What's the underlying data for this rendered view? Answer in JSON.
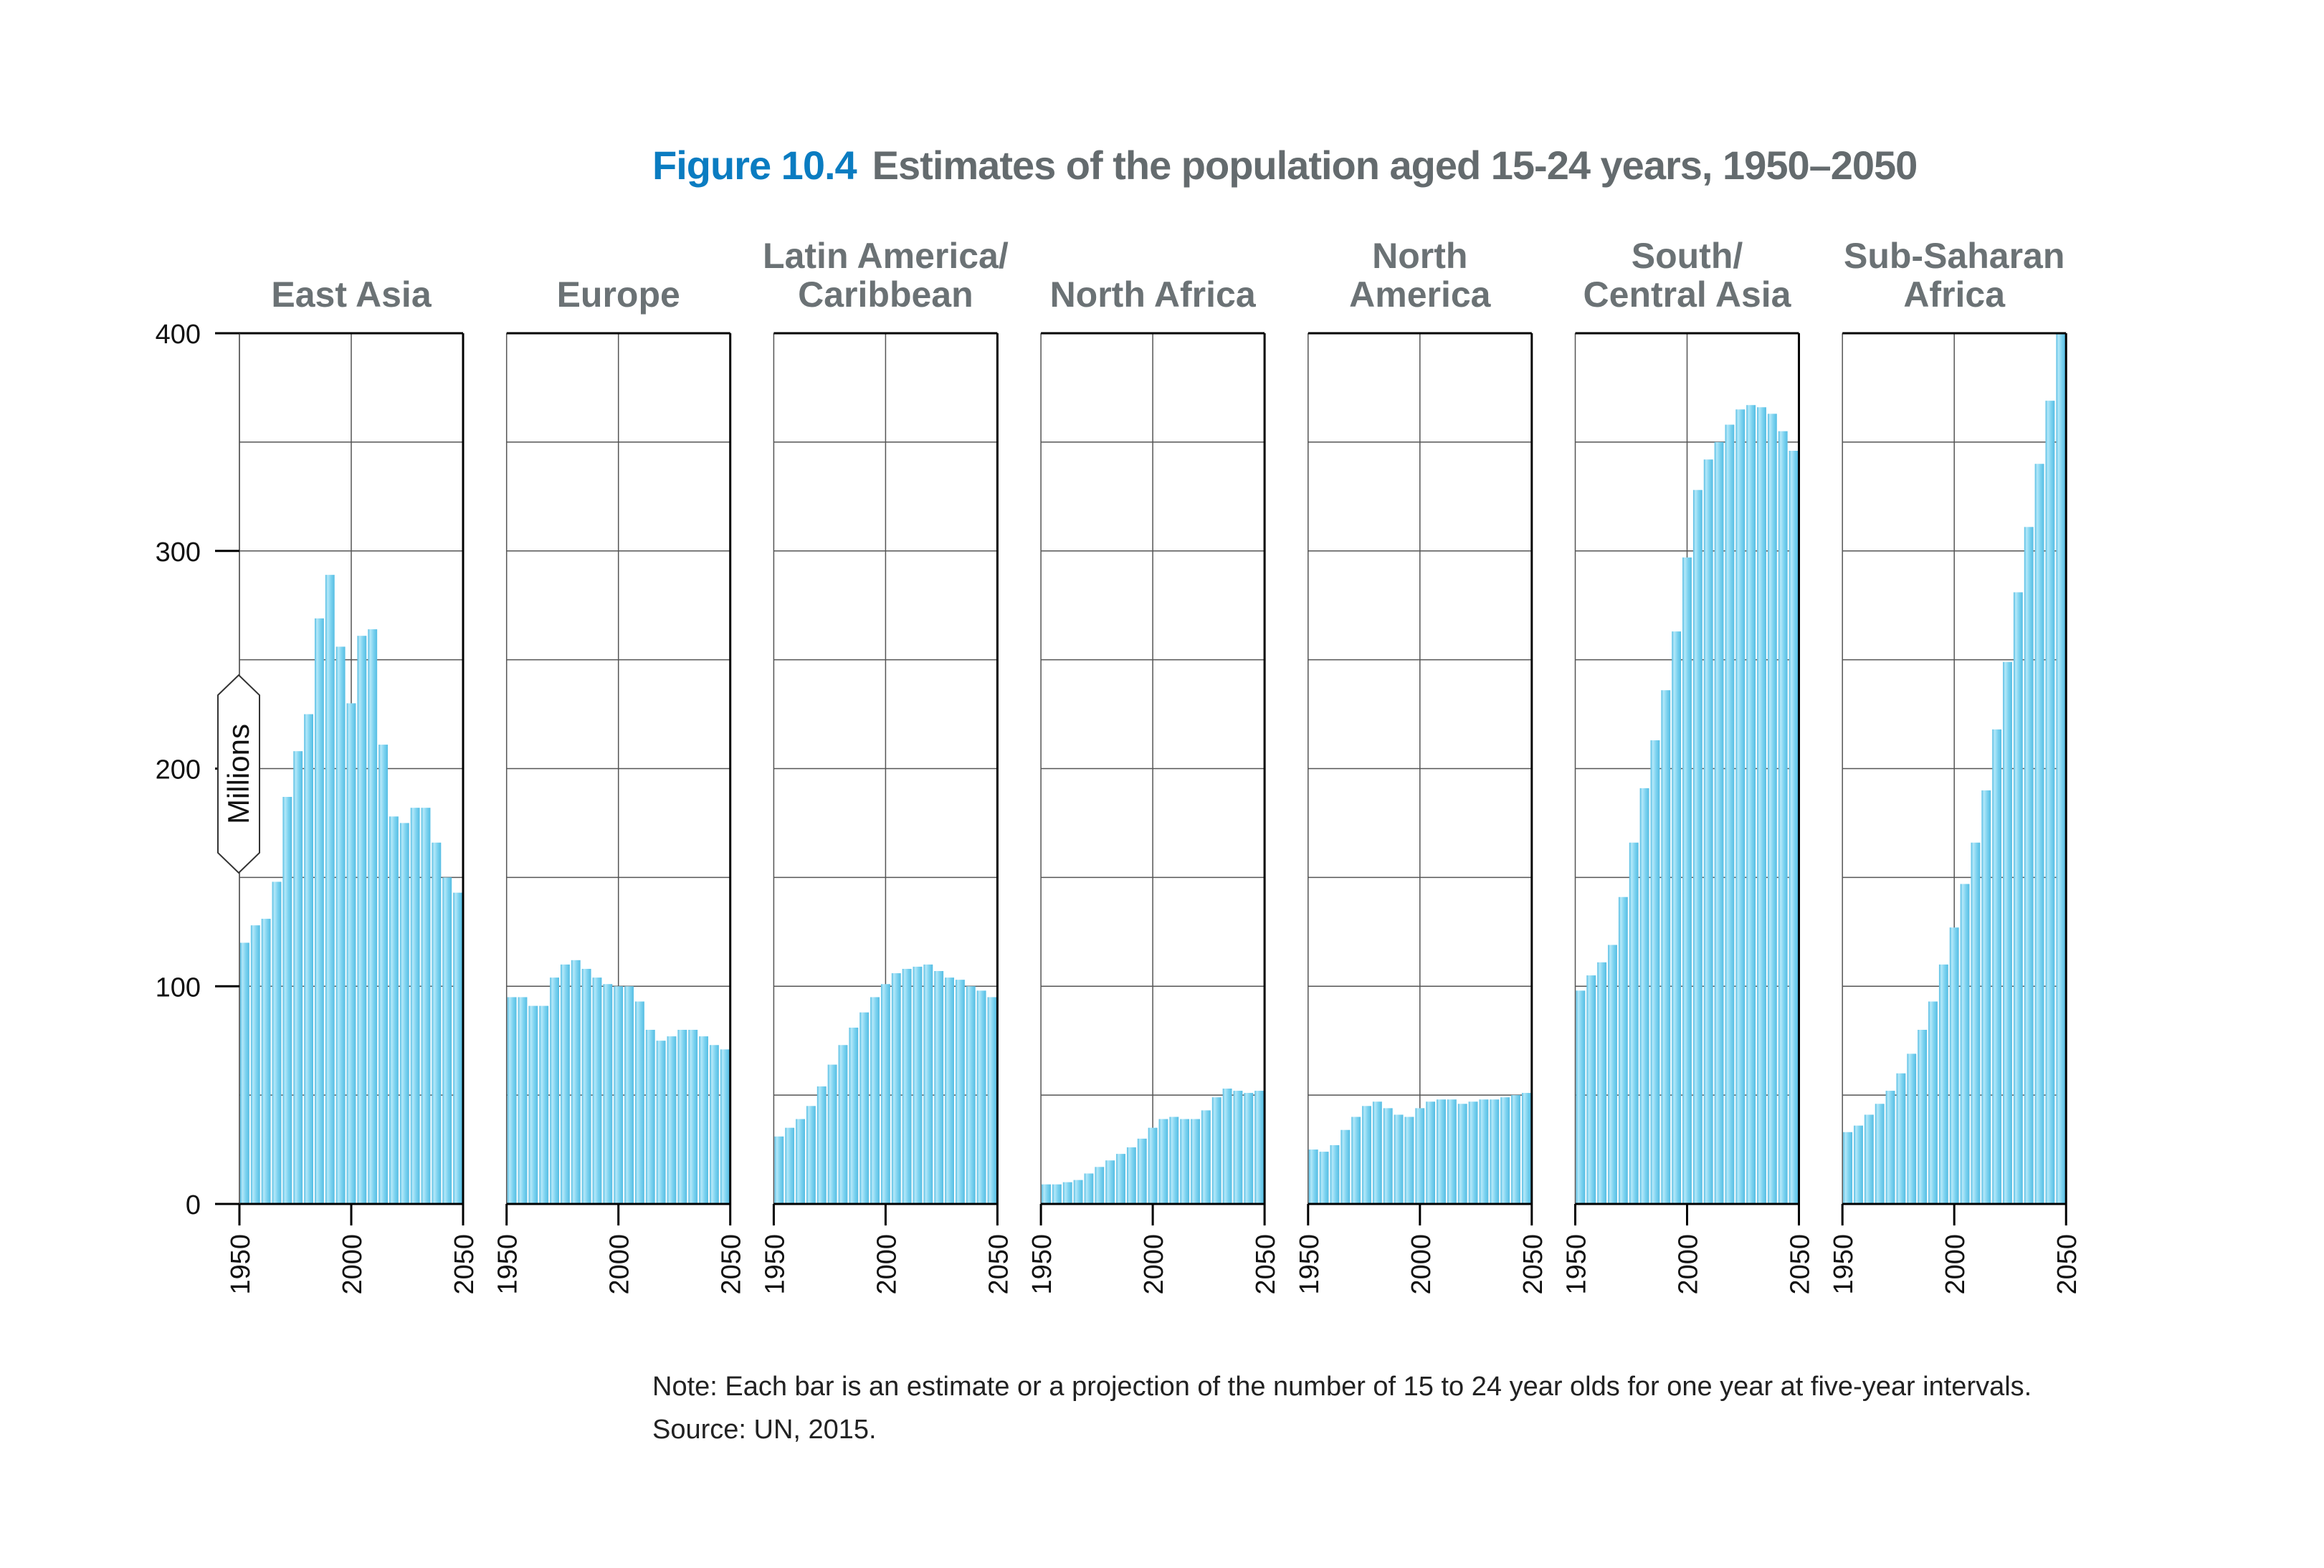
{
  "figure": {
    "number": "Figure 10.4",
    "title": "Estimates of the population aged 15-24 years, 1950–2050"
  },
  "note": {
    "line1": "Note: Each bar is an estimate or a projection of the number of 15 to 24 year olds for one year at five-year intervals.",
    "line2": "Source: UN, 2015."
  },
  "colors": {
    "bar": "#7dd3f0",
    "bar_highlight": "#b4e8f9",
    "bar_shade": "#55bde3",
    "title_number": "#0a7cc1",
    "title_text": "#646b6e",
    "panel_title": "#6b7275",
    "grid": "#555555",
    "frame": "#000000"
  },
  "chart_data": {
    "type": "bar",
    "ylabel": "Millions",
    "ylim": [
      0,
      400
    ],
    "yticks": [
      0,
      100,
      200,
      300,
      400
    ],
    "grid": true,
    "x": [
      1950,
      1955,
      1960,
      1965,
      1970,
      1975,
      1980,
      1985,
      1990,
      1995,
      2000,
      2005,
      2010,
      2015,
      2020,
      2025,
      2030,
      2035,
      2040,
      2045,
      2050
    ],
    "xticks": [
      1950,
      2000,
      2050
    ],
    "xlim": [
      1950,
      2050
    ],
    "panels": [
      {
        "name": "East Asia",
        "title_lines": [
          "East Asia"
        ],
        "values": [
          120,
          128,
          131,
          148,
          187,
          208,
          225,
          269,
          289,
          256,
          230,
          261,
          264,
          211,
          178,
          175,
          182,
          182,
          166,
          150,
          143
        ]
      },
      {
        "name": "Europe",
        "title_lines": [
          "Europe"
        ],
        "values": [
          95,
          95,
          91,
          91,
          104,
          110,
          112,
          108,
          104,
          101,
          100,
          100,
          93,
          80,
          75,
          77,
          80,
          80,
          77,
          73,
          71
        ]
      },
      {
        "name": "Latin America/Caribbean",
        "title_lines": [
          "Latin America/",
          "Caribbean"
        ],
        "values": [
          31,
          35,
          39,
          45,
          54,
          64,
          73,
          81,
          88,
          95,
          101,
          106,
          108,
          109,
          110,
          107,
          104,
          103,
          100,
          98,
          95
        ]
      },
      {
        "name": "North Africa",
        "title_lines": [
          "North Africa"
        ],
        "values": [
          9,
          9,
          10,
          11,
          14,
          17,
          20,
          23,
          26,
          30,
          35,
          39,
          40,
          39,
          39,
          43,
          49,
          53,
          52,
          51,
          52
        ]
      },
      {
        "name": "North America",
        "title_lines": [
          "North",
          "America"
        ],
        "values": [
          25,
          24,
          27,
          34,
          40,
          45,
          47,
          44,
          41,
          40,
          44,
          47,
          48,
          48,
          46,
          47,
          48,
          48,
          49,
          50,
          51
        ]
      },
      {
        "name": "South/Central Asia",
        "title_lines": [
          "South/",
          "Central Asia"
        ],
        "values": [
          98,
          105,
          111,
          119,
          141,
          166,
          191,
          213,
          236,
          263,
          297,
          328,
          342,
          350,
          358,
          365,
          367,
          366,
          363,
          355,
          346
        ]
      },
      {
        "name": "Sub-Saharan Africa",
        "title_lines": [
          "Sub-Saharan",
          "Africa"
        ],
        "values": [
          33,
          36,
          41,
          46,
          52,
          60,
          69,
          80,
          93,
          110,
          127,
          147,
          166,
          190,
          218,
          249,
          281,
          311,
          340,
          369,
          400
        ]
      }
    ]
  }
}
